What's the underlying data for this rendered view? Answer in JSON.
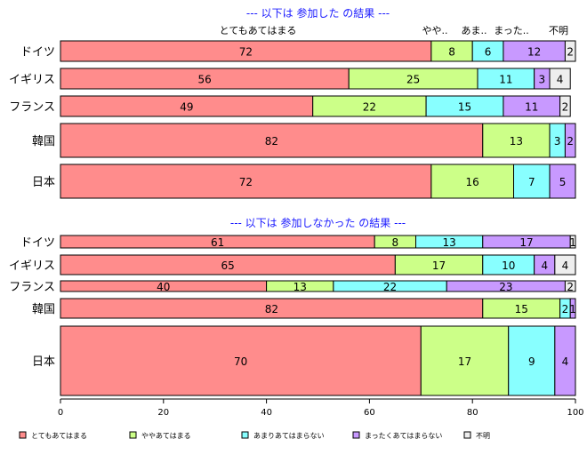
{
  "colors": {
    "とてもあてはまる": "#ff8c8c",
    "ややあてはまる": "#ccff88",
    "あまりあてはまらない": "#88ffff",
    "まったくあてはまらない": "#c899ff",
    "不明": "#eeeeee",
    "title": "#1a1aff"
  },
  "chart_data": {
    "type": "bar",
    "orientation": "horizontal",
    "stacked": true,
    "xlim": [
      0,
      100
    ],
    "x_ticks": [
      0,
      20,
      40,
      60,
      80,
      100
    ],
    "legend": [
      "とてもあてはまる",
      "ややあてはまる",
      "あまりあてはまらない",
      "まったくあてはまらない",
      "不明"
    ],
    "legend_position": "bottom",
    "panels": [
      {
        "title": "--- 以下は 参加した の結果 ---",
        "column_labels": [
          "とてもあてはまる",
          "やや..",
          "あま..",
          "まった..",
          "不明"
        ],
        "categories": [
          "ドイツ",
          "イギリス",
          "フランス",
          "韓国",
          "日本"
        ],
        "series": [
          {
            "name": "とてもあてはまる",
            "values": [
              72,
              56,
              49,
              82,
              72
            ]
          },
          {
            "name": "ややあてはまる",
            "values": [
              8,
              25,
              22,
              13,
              16
            ]
          },
          {
            "name": "あまりあてはまらない",
            "values": [
              6,
              11,
              15,
              3,
              7
            ]
          },
          {
            "name": "まったくあてはまらない",
            "values": [
              12,
              3,
              11,
              2,
              5
            ]
          },
          {
            "name": "不明",
            "values": [
              2,
              4,
              2,
              0,
              0
            ]
          }
        ]
      },
      {
        "title": "--- 以下は 参加しなかった の結果 ---",
        "categories": [
          "ドイツ",
          "イギリス",
          "フランス",
          "韓国",
          "日本"
        ],
        "series": [
          {
            "name": "とてもあてはまる",
            "values": [
              61,
              65,
              40,
              82,
              70
            ]
          },
          {
            "name": "ややあてはまる",
            "values": [
              8,
              17,
              13,
              15,
              17
            ]
          },
          {
            "name": "あまりあてはまらない",
            "values": [
              13,
              10,
              22,
              2,
              9
            ]
          },
          {
            "name": "まったくあてはまらない",
            "values": [
              17,
              4,
              23,
              1,
              4
            ]
          },
          {
            "name": "不明",
            "values": [
              1,
              4,
              2,
              0,
              0
            ]
          }
        ]
      }
    ]
  }
}
